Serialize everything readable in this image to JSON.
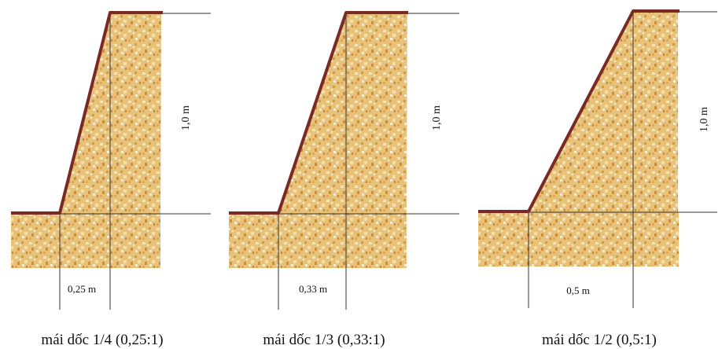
{
  "colors": {
    "soil_base": "#e9c27a",
    "soil_dark": "#c98f3e",
    "soil_light": "#f8e6b9",
    "slope_line": "#7a2a24",
    "guide_line": "#333333"
  },
  "diagrams": [
    {
      "height_label": "1,0 m",
      "offset_label": "0,25 m",
      "caption": "mái dốc 1/4 (0,25:1)"
    },
    {
      "height_label": "1,0 m",
      "offset_label": "0,33 m",
      "caption": "mái dốc 1/3 (0,33:1)"
    },
    {
      "height_label": "1,0 m",
      "offset_label": "0,5 m",
      "caption": "mái dốc 1/2 (0,5:1)"
    }
  ]
}
